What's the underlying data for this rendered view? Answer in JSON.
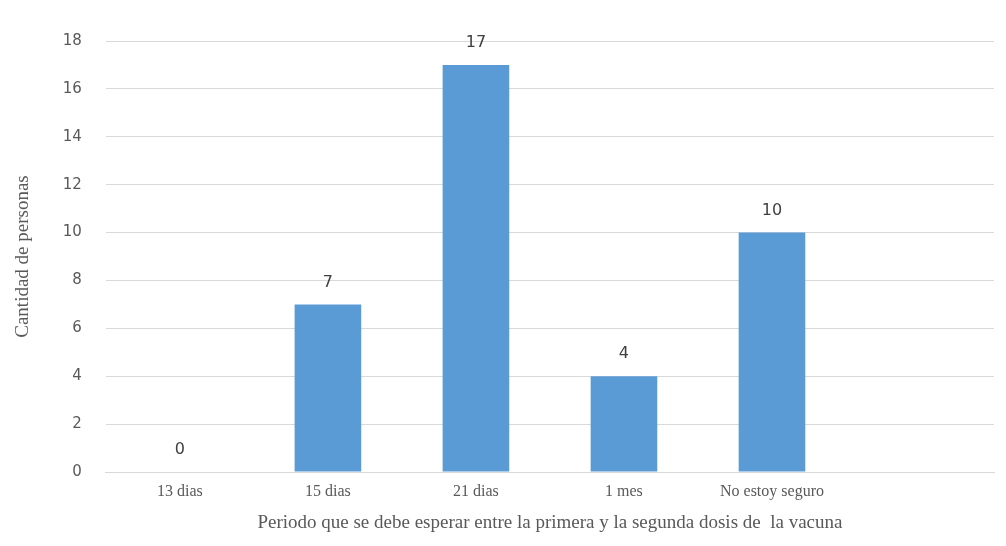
{
  "chart_data": {
    "type": "bar",
    "xlabel": "Periodo que se debe esperar entre la primera y la segunda dosis de  la vacuna",
    "ylabel": "Cantidad de personas",
    "categories": [
      "13 dias",
      "15 dias",
      "21 dias",
      "1 mes",
      "No estoy seguro",
      null
    ],
    "values": [
      0,
      7,
      17,
      4,
      10,
      null
    ],
    "color": "#5b9bd5",
    "ylim": [
      0,
      18
    ],
    "yticks": [
      0,
      2,
      4,
      6,
      8,
      10,
      12,
      14,
      16,
      18
    ],
    "grid": "y",
    "legend": false,
    "data_labels": true
  }
}
